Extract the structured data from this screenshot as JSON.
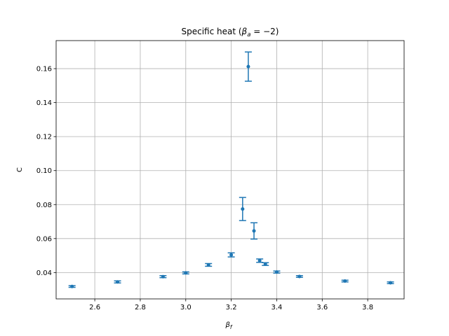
{
  "chart_data": {
    "type": "scatter",
    "title": "Specific heat (",
    "title_math_main": "β",
    "title_math_sub": "a",
    "title_math_rest": " = −2)",
    "xlabel_main": "β",
    "xlabel_sub": "f",
    "ylabel": "C",
    "xlim": [
      2.43,
      3.96
    ],
    "ylim": [
      0.0245,
      0.1765
    ],
    "xticks": [
      2.6,
      2.8,
      3.0,
      3.2,
      3.4,
      3.6,
      3.8
    ],
    "xtick_labels": [
      "2.6",
      "2.8",
      "3.0",
      "3.2",
      "3.4",
      "3.6",
      "3.8"
    ],
    "yticks": [
      0.04,
      0.06,
      0.08,
      0.1,
      0.12,
      0.14,
      0.16
    ],
    "ytick_labels": [
      "0.04",
      "0.06",
      "0.08",
      "0.10",
      "0.12",
      "0.14",
      "0.16"
    ],
    "grid": true,
    "color": "#1f77b4",
    "series": [
      {
        "x": [
          2.5,
          2.7,
          2.9,
          3.0,
          3.1,
          3.2,
          3.25,
          3.275,
          3.3,
          3.325,
          3.35,
          3.4,
          3.5,
          3.7,
          3.9
        ],
        "y": [
          0.0318,
          0.0345,
          0.0376,
          0.0398,
          0.0445,
          0.0504,
          0.0774,
          0.1612,
          0.0645,
          0.047,
          0.045,
          0.0403,
          0.0377,
          0.035,
          0.034
        ],
        "err": [
          0.0005,
          0.0006,
          0.0006,
          0.0006,
          0.0008,
          0.0012,
          0.0068,
          0.0086,
          0.0048,
          0.001,
          0.0008,
          0.0006,
          0.0005,
          0.0005,
          0.0005
        ]
      }
    ]
  }
}
